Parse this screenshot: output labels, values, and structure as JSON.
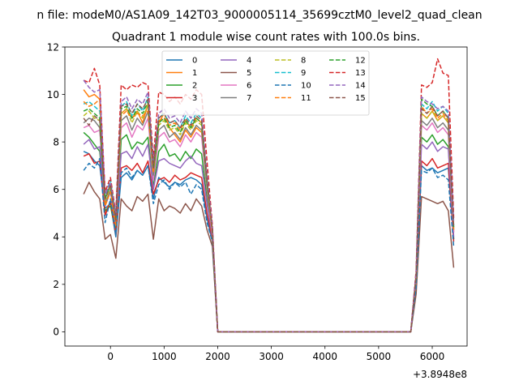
{
  "suptitle": "n file: modeM0/AS1A09_142T03_9000005114_35699cztM0_level2_quad_clean",
  "chart_data": {
    "type": "line",
    "title": "Quadrant 1 module wise count rates with 100.0s bins.",
    "xlabel": "",
    "ylabel": "",
    "x_offset_label": "+3.8948e8",
    "xlim": [
      -850,
      6650
    ],
    "ylim": [
      -0.6,
      12.0
    ],
    "xticks": [
      0,
      1000,
      2000,
      3000,
      4000,
      5000,
      6000
    ],
    "yticks": [
      0,
      2,
      4,
      6,
      8,
      10,
      12
    ],
    "grid": false,
    "legend_position": "top-center",
    "legend_columns": 4,
    "x": [
      -500,
      -400,
      -300,
      -200,
      -100,
      0,
      100,
      200,
      300,
      400,
      500,
      600,
      700,
      800,
      900,
      1000,
      1100,
      1200,
      1300,
      1400,
      1500,
      1600,
      1700,
      1800,
      1900,
      2000,
      2100,
      5600,
      5700,
      5800,
      5900,
      6000,
      6100,
      6200,
      6300,
      6400
    ],
    "series": [
      {
        "name": "0",
        "color": "#1f77b4",
        "dash": "solid",
        "values": [
          7.6,
          7.5,
          7.2,
          7.0,
          5.2,
          5.4,
          4.0,
          6.5,
          6.7,
          6.4,
          6.8,
          6.6,
          7.0,
          5.6,
          6.5,
          6.3,
          6.1,
          6.3,
          6.2,
          6.4,
          6.5,
          6.4,
          6.2,
          4.8,
          3.8,
          0.0,
          0.0,
          0.0,
          2.0,
          7.0,
          6.8,
          6.9,
          6.7,
          6.8,
          6.9,
          3.9
        ]
      },
      {
        "name": "1",
        "color": "#ff7f0e",
        "dash": "solid",
        "values": [
          10.2,
          9.9,
          10.0,
          9.8,
          5.0,
          5.5,
          4.3,
          9.2,
          9.4,
          9.0,
          9.3,
          8.8,
          9.6,
          6.8,
          8.8,
          9.2,
          8.6,
          8.3,
          8.0,
          8.5,
          8.2,
          8.6,
          8.4,
          6.2,
          4.1,
          0.0,
          0.0,
          0.0,
          2.3,
          9.2,
          9.0,
          9.3,
          8.9,
          9.1,
          8.8,
          4.2
        ]
      },
      {
        "name": "2",
        "color": "#2ca02c",
        "dash": "solid",
        "values": [
          8.4,
          8.2,
          7.9,
          7.6,
          5.1,
          5.3,
          4.2,
          8.1,
          8.3,
          7.7,
          8.0,
          7.9,
          8.2,
          6.1,
          7.6,
          7.9,
          7.4,
          7.5,
          7.2,
          7.6,
          7.3,
          7.7,
          7.5,
          5.6,
          4.0,
          0.0,
          0.0,
          0.0,
          2.1,
          8.2,
          8.0,
          8.3,
          7.9,
          8.1,
          7.8,
          3.9
        ]
      },
      {
        "name": "3",
        "color": "#d62728",
        "dash": "solid",
        "values": [
          7.4,
          7.5,
          7.1,
          7.2,
          4.9,
          5.5,
          4.1,
          6.9,
          7.0,
          6.8,
          7.1,
          6.7,
          7.2,
          5.8,
          6.4,
          6.5,
          6.3,
          6.6,
          6.4,
          6.5,
          6.7,
          6.6,
          6.5,
          5.0,
          3.9,
          0.0,
          0.0,
          0.0,
          2.0,
          7.2,
          7.0,
          7.3,
          6.9,
          7.0,
          7.1,
          3.8
        ]
      },
      {
        "name": "4",
        "color": "#9467bd",
        "dash": "solid",
        "values": [
          7.9,
          8.1,
          7.7,
          7.8,
          5.3,
          5.9,
          4.5,
          7.5,
          7.6,
          7.3,
          7.8,
          7.4,
          7.9,
          6.0,
          7.2,
          7.3,
          7.1,
          7.0,
          6.9,
          7.2,
          7.4,
          7.1,
          7.0,
          5.4,
          4.0,
          0.0,
          0.0,
          0.0,
          2.1,
          7.9,
          7.7,
          8.0,
          7.6,
          7.8,
          7.7,
          4.0
        ]
      },
      {
        "name": "5",
        "color": "#8c564b",
        "dash": "solid",
        "values": [
          5.8,
          6.3,
          5.9,
          5.6,
          3.9,
          4.1,
          3.1,
          5.6,
          5.3,
          5.1,
          5.7,
          5.5,
          5.8,
          3.9,
          5.6,
          5.1,
          5.3,
          5.2,
          5.0,
          5.4,
          5.1,
          5.6,
          5.3,
          4.3,
          3.6,
          0.0,
          0.0,
          0.0,
          1.6,
          5.7,
          5.6,
          5.5,
          5.4,
          5.5,
          5.1,
          2.7
        ]
      },
      {
        "name": "6",
        "color": "#e377c2",
        "dash": "solid",
        "values": [
          8.6,
          8.7,
          8.4,
          8.5,
          5.6,
          6.2,
          4.8,
          8.6,
          8.8,
          8.2,
          8.7,
          8.5,
          9.0,
          6.4,
          8.2,
          8.4,
          8.0,
          8.1,
          7.8,
          8.3,
          8.0,
          8.4,
          8.2,
          6.0,
          4.1,
          0.0,
          0.0,
          0.0,
          2.2,
          8.7,
          8.5,
          8.8,
          8.4,
          8.6,
          8.3,
          4.2
        ]
      },
      {
        "name": "7",
        "color": "#7f7f7f",
        "dash": "solid",
        "values": [
          8.8,
          9.0,
          8.9,
          8.6,
          5.4,
          6.0,
          4.6,
          8.9,
          9.1,
          8.5,
          9.0,
          8.7,
          9.3,
          6.6,
          8.5,
          8.7,
          8.2,
          8.4,
          8.1,
          8.6,
          8.3,
          8.7,
          8.5,
          6.1,
          4.2,
          0.0,
          0.0,
          0.0,
          2.3,
          8.9,
          8.7,
          9.0,
          8.6,
          8.8,
          8.5,
          4.3
        ]
      },
      {
        "name": "8",
        "color": "#bcbd22",
        "dash": "dashed",
        "values": [
          9.1,
          9.3,
          9.0,
          8.9,
          5.5,
          6.1,
          4.7,
          9.2,
          9.4,
          8.8,
          9.3,
          9.0,
          9.6,
          6.8,
          8.7,
          8.9,
          8.5,
          8.6,
          8.3,
          8.8,
          8.5,
          8.9,
          8.7,
          6.3,
          4.2,
          0.0,
          0.0,
          0.0,
          2.3,
          9.2,
          9.0,
          9.3,
          8.9,
          9.1,
          8.8,
          4.4
        ]
      },
      {
        "name": "9",
        "color": "#17becf",
        "dash": "dashed",
        "values": [
          9.6,
          9.7,
          9.5,
          9.3,
          5.7,
          6.4,
          4.9,
          9.5,
          9.7,
          9.1,
          9.6,
          9.3,
          9.9,
          7.0,
          9.0,
          9.2,
          8.8,
          8.9,
          8.6,
          9.1,
          8.8,
          9.2,
          9.0,
          6.5,
          4.3,
          0.0,
          0.0,
          0.0,
          2.4,
          9.6,
          9.4,
          9.7,
          9.3,
          9.5,
          9.2,
          4.5
        ]
      },
      {
        "name": "10",
        "color": "#1f77b4",
        "dash": "dashed",
        "values": [
          6.8,
          7.1,
          6.9,
          7.3,
          4.6,
          5.6,
          4.1,
          6.7,
          6.9,
          6.5,
          6.8,
          6.6,
          7.0,
          5.4,
          6.2,
          6.4,
          6.0,
          6.3,
          6.1,
          6.3,
          5.8,
          6.2,
          6.0,
          4.6,
          3.8,
          0.0,
          0.0,
          0.0,
          1.9,
          6.8,
          6.7,
          6.9,
          6.5,
          6.6,
          6.4,
          3.6
        ]
      },
      {
        "name": "11",
        "color": "#ff7f0e",
        "dash": "dashed",
        "values": [
          9.7,
          9.5,
          9.6,
          9.8,
          5.3,
          5.9,
          4.5,
          9.1,
          9.3,
          9.0,
          9.2,
          9.1,
          9.3,
          6.7,
          8.9,
          9.0,
          8.7,
          8.8,
          8.5,
          8.9,
          8.6,
          9.0,
          8.8,
          6.4,
          4.1,
          0.0,
          0.0,
          0.0,
          2.4,
          9.5,
          9.2,
          9.4,
          9.0,
          9.2,
          8.9,
          4.3
        ]
      },
      {
        "name": "12",
        "color": "#2ca02c",
        "dash": "dashed",
        "values": [
          9.3,
          9.4,
          9.2,
          9.0,
          5.6,
          6.2,
          4.8,
          9.4,
          9.5,
          9.0,
          9.4,
          9.2,
          9.7,
          6.9,
          8.8,
          9.0,
          8.6,
          8.7,
          8.4,
          8.9,
          8.6,
          9.0,
          8.8,
          6.4,
          4.3,
          0.0,
          0.0,
          0.0,
          2.4,
          9.8,
          9.6,
          9.5,
          9.1,
          9.3,
          9.0,
          4.4
        ]
      },
      {
        "name": "13",
        "color": "#d62728",
        "dash": "dashed",
        "values": [
          10.6,
          10.5,
          11.1,
          10.4,
          5.9,
          6.5,
          5.0,
          10.4,
          10.2,
          10.4,
          10.3,
          10.5,
          10.4,
          7.3,
          10.1,
          10.0,
          9.7,
          9.9,
          9.6,
          10.0,
          9.8,
          10.2,
          10.0,
          7.2,
          4.5,
          0.0,
          0.0,
          0.0,
          2.6,
          10.4,
          10.3,
          10.5,
          11.5,
          10.9,
          10.8,
          4.8
        ]
      },
      {
        "name": "14",
        "color": "#9467bd",
        "dash": "dashed",
        "values": [
          10.6,
          10.3,
          10.1,
          10.2,
          5.8,
          6.3,
          4.9,
          9.7,
          9.9,
          9.4,
          9.8,
          9.6,
          10.1,
          7.1,
          9.2,
          9.4,
          9.0,
          9.1,
          8.8,
          9.3,
          9.0,
          9.4,
          9.2,
          6.6,
          4.4,
          0.0,
          0.0,
          0.0,
          2.5,
          9.9,
          9.7,
          9.6,
          9.4,
          9.5,
          9.3,
          4.6
        ]
      },
      {
        "name": "15",
        "color": "#8c564b",
        "dash": "dashed",
        "values": [
          9.0,
          8.7,
          9.1,
          8.9,
          5.6,
          6.2,
          4.7,
          9.5,
          9.6,
          9.2,
          9.6,
          9.4,
          9.8,
          6.9,
          9.0,
          9.2,
          8.8,
          8.9,
          8.6,
          9.0,
          8.7,
          9.1,
          8.9,
          6.4,
          4.3,
          0.0,
          0.0,
          0.0,
          2.4,
          9.4,
          9.2,
          9.5,
          9.1,
          9.3,
          9.0,
          4.4
        ]
      }
    ]
  }
}
